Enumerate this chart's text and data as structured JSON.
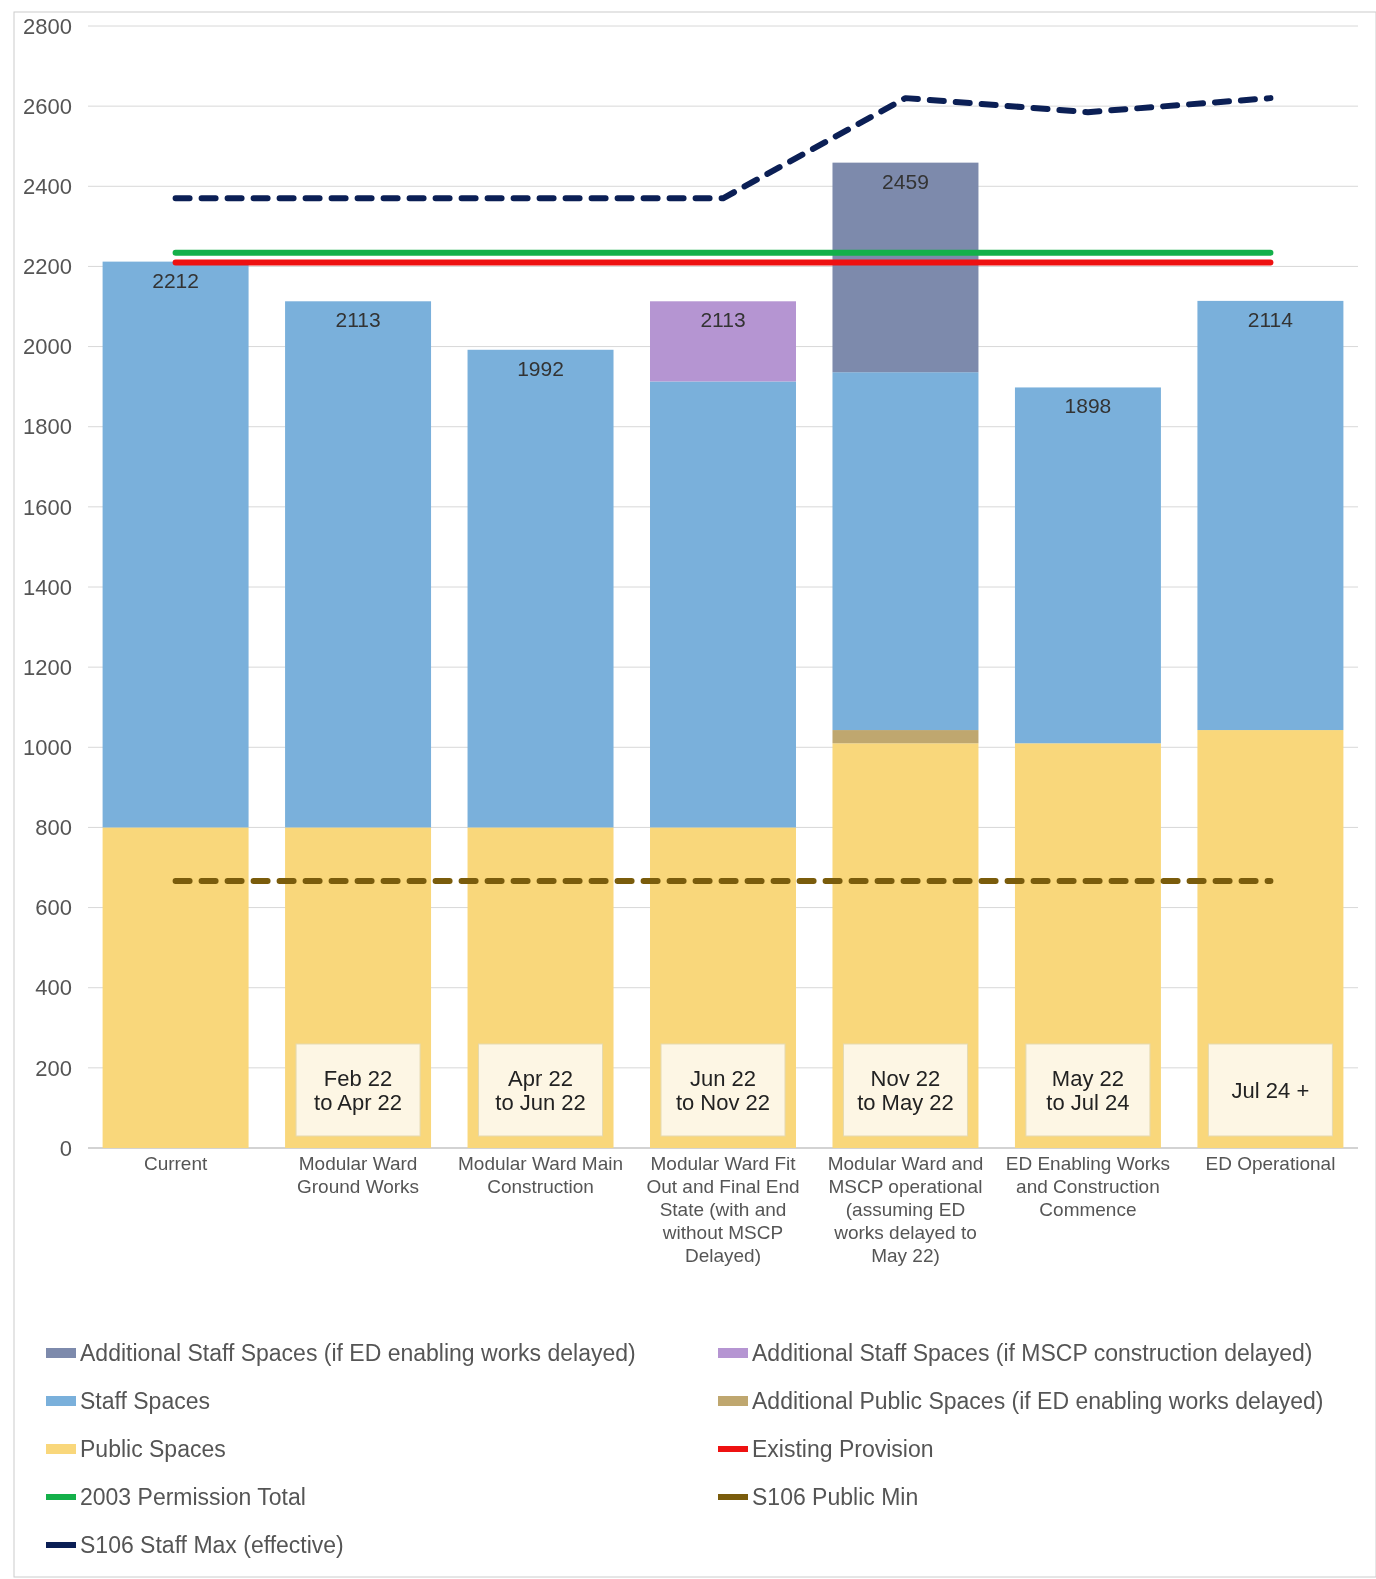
{
  "chart_data": {
    "type": "bar",
    "stacked": true,
    "categories": [
      "Current",
      "Modular Ward Ground Works",
      "Modular Ward Main Construction",
      "Modular Ward Fit Out and Final End State (with and without MSCP Delayed)",
      "Modular Ward and MSCP operational (assuming ED works delayed to May 22)",
      "ED Enabling Works and Construction Commence",
      "ED Operational"
    ],
    "series": [
      {
        "name": "Public Spaces",
        "color": "#f9d77b",
        "values": [
          800,
          800,
          800,
          800,
          1010,
          1010,
          1043
        ]
      },
      {
        "name": "Additional Public Spaces (if ED enabling works delayed)",
        "color": "#bfa76f",
        "values": [
          null,
          null,
          null,
          null,
          33,
          null,
          null
        ]
      },
      {
        "name": "Staff Spaces",
        "color": "#7ab0db",
        "values": [
          1412,
          1313,
          1192,
          1113,
          893,
          888,
          1071
        ]
      },
      {
        "name": "Additional Staff Spaces (if MSCP construction delayed)",
        "color": "#b595d2",
        "values": [
          null,
          null,
          null,
          200,
          null,
          null,
          null
        ]
      },
      {
        "name": "Additional Staff Spaces (if ED enabling works delayed)",
        "color": "#7d8aac",
        "values": [
          null,
          null,
          null,
          null,
          523,
          null,
          null
        ]
      },
      {
        "name": "Existing Provision",
        "type": "line",
        "color": "#ee1111",
        "line_style": "solid",
        "values": [
          2210,
          2210,
          2210,
          2210,
          2210,
          2210,
          2210
        ]
      },
      {
        "name": "2003 Permission Total",
        "type": "line",
        "color": "#14b04a",
        "line_style": "solid",
        "values": [
          2234,
          2234,
          2234,
          2234,
          2234,
          2234,
          2234
        ]
      },
      {
        "name": "S106 Public Min",
        "type": "line",
        "color": "#7a5c0c",
        "line_style": "dashed",
        "values": [
          666,
          666,
          666,
          666,
          666,
          666,
          666
        ]
      },
      {
        "name": "S106 Staff Max (effective)",
        "type": "line",
        "color": "#0b1f55",
        "line_style": "dashed",
        "values": [
          2370,
          2370,
          2370,
          2370,
          2620,
          2585,
          2620
        ]
      }
    ],
    "totals": [
      "2212",
      "2113",
      "1992",
      "2113",
      "2459",
      "1898",
      "2114"
    ],
    "annotations": [
      "Feb 22\nto Apr 22",
      "Apr 22\nto Jun 22",
      "Jun 22\nto Nov 22",
      "Nov 22\nto May 22",
      "May 22\nto Jul 24",
      "Jul 24 +"
    ],
    "ylim": [
      0,
      2800
    ],
    "yticks": [
      0,
      200,
      400,
      600,
      800,
      1000,
      1200,
      1400,
      1600,
      1800,
      2000,
      2200,
      2400,
      2600,
      2800
    ],
    "grid": "y",
    "legend": "bottom"
  }
}
